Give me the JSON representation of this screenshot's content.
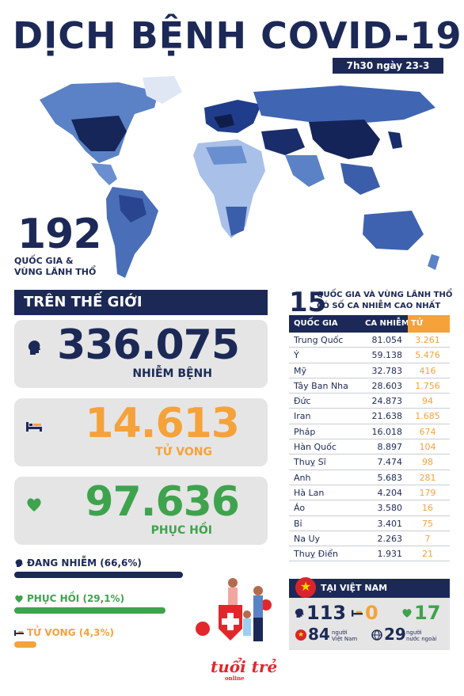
{
  "header": {
    "title": "DỊCH BỆNH COVID-19",
    "date": "7h30 ngày 23-3"
  },
  "world": {
    "country_count": "192",
    "country_count_label_line1": "QUỐC GIA &",
    "country_count_label_line2": "VÙNG LÃNH THỔ",
    "section_title": "TRÊN THẾ GIỚI",
    "infected": {
      "value": "336.075",
      "label": "NHIỄM BỆNH"
    },
    "deaths": {
      "value": "14.613",
      "label": "TỬ VONG"
    },
    "recovered": {
      "value": "97.636",
      "label": "PHỤC HỒI"
    }
  },
  "breakdown": {
    "active": {
      "label": "ĐANG NHIỄM (66,6%)",
      "percent": 66.6
    },
    "recovered": {
      "label": "PHỤC HỒI (29,1%)",
      "percent": 29.1
    },
    "deaths": {
      "label": "TỬ VONG (4,3%)",
      "percent": 4.3
    }
  },
  "top15": {
    "number": "15",
    "title_line1": "QUỐC GIA VÀ VÙNG LÃNH THỔ",
    "title_line2": "CÓ SỐ CA NHIỄM CAO NHẤT",
    "headers": {
      "country": "QUỐC GIA",
      "cases": "CA NHIỄM",
      "deaths": "TỬ VONG"
    },
    "rows": [
      {
        "country": "Trung Quốc",
        "cases": "81.054",
        "deaths": "3.261"
      },
      {
        "country": "Ý",
        "cases": "59.138",
        "deaths": "5.476"
      },
      {
        "country": "Mỹ",
        "cases": "32.783",
        "deaths": "416"
      },
      {
        "country": "Tây Ban Nha",
        "cases": "28.603",
        "deaths": "1.756"
      },
      {
        "country": "Đức",
        "cases": "24.873",
        "deaths": "94"
      },
      {
        "country": "Iran",
        "cases": "21.638",
        "deaths": "1.685"
      },
      {
        "country": "Pháp",
        "cases": "16.018",
        "deaths": "674"
      },
      {
        "country": "Hàn Quốc",
        "cases": "8.897",
        "deaths": "104"
      },
      {
        "country": "Thuỵ Sĩ",
        "cases": "7.474",
        "deaths": "98"
      },
      {
        "country": "Anh",
        "cases": "5.683",
        "deaths": "281"
      },
      {
        "country": "Hà Lan",
        "cases": "4.204",
        "deaths": "179"
      },
      {
        "country": "Áo",
        "cases": "3.580",
        "deaths": "16"
      },
      {
        "country": "Bỉ",
        "cases": "3.401",
        "deaths": "75"
      },
      {
        "country": "Na Uy",
        "cases": "2.263",
        "deaths": "7"
      },
      {
        "country": "Thuỵ Điển",
        "cases": "1.931",
        "deaths": "21"
      }
    ]
  },
  "vietnam": {
    "title": "TẠI VIỆT NAM",
    "infected": "113",
    "deaths": "0",
    "recovered": "17",
    "vn_people": "84",
    "vn_people_label_line1": "người",
    "vn_people_label_line2": "Việt Nam",
    "foreigners": "29",
    "foreigners_label_line1": "người",
    "foreigners_label_line2": "nước ngoài"
  },
  "logo": {
    "text": "tuổi trẻ",
    "sub": "online"
  },
  "colors": {
    "navy": "#1c2957",
    "orange": "#f5a23a",
    "green": "#3fa34d",
    "red": "#e2262c"
  }
}
